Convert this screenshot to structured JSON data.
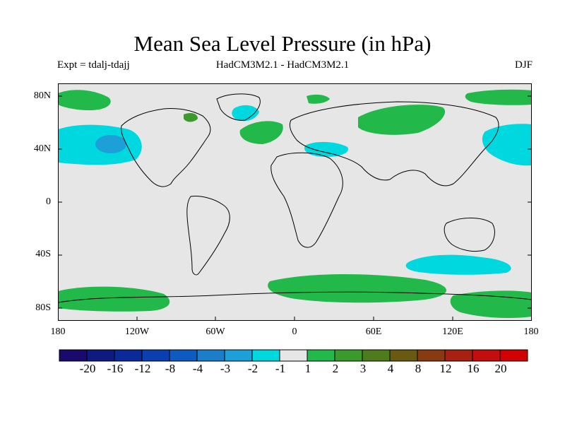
{
  "title": "Mean Sea Level Pressure (in hPa)",
  "subtitle_left": "Expt = tdalj-tdajj",
  "subtitle_center": "HadCM3M2.1 - HadCM3M2.1",
  "subtitle_right": "DJF",
  "lat_labels": [
    "80N",
    "40N",
    "0",
    "40S",
    "80S"
  ],
  "lon_labels": [
    "180",
    "120W",
    "60W",
    "0",
    "60E",
    "120E",
    "180"
  ],
  "legend": {
    "labels": [
      "-20",
      "-16",
      "-12",
      "-8",
      "-4",
      "-3",
      "-2",
      "-1",
      "1",
      "2",
      "3",
      "4",
      "8",
      "12",
      "16",
      "20"
    ],
    "colors": [
      "#1a0a6e",
      "#0d1a80",
      "#0a2a99",
      "#0a3faf",
      "#0d5ac0",
      "#1a7fc8",
      "#1da0d8",
      "#00d8e0",
      "#e6e6e6",
      "#22b84a",
      "#3a9a2a",
      "#4e7c1a",
      "#6a5a10",
      "#8a3a10",
      "#a8200f",
      "#c40e0e",
      "#d20000"
    ]
  },
  "map_colors": {
    "background": "#e6e6e6",
    "neg_light": "#00d8e0",
    "neg_mid": "#1da0d8",
    "pos_light": "#22b84a",
    "pos_mid": "#3a9a2a"
  }
}
